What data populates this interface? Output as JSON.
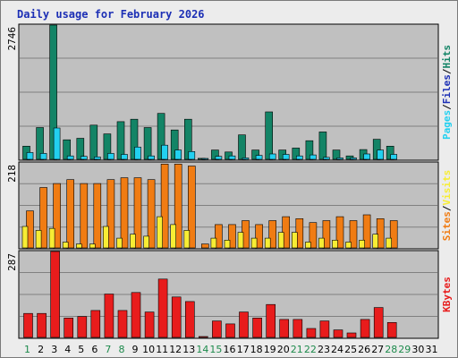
{
  "title": "Daily usage for February 2026",
  "colors": {
    "background": "#ececec",
    "plot_bg": "#c0c0c0",
    "title": "#1c2fb5",
    "hits": "#138466",
    "files": "#22d0f0",
    "sites": "#f07c13",
    "visits": "#f7ed34",
    "kbytes": "#e81c1c",
    "weekday_label": "#000000",
    "weekend_label": "#1d8a4c"
  },
  "legend": {
    "hits": "Hits",
    "files": "Files",
    "pages": "Pages",
    "sites": "Sites",
    "visits": "Visits",
    "kbytes": "KBytes",
    "sep": "/"
  },
  "chart_data": [
    {
      "type": "bar",
      "panel": "hits-files-pages",
      "title": "Daily usage for February 2026",
      "ymax_label": "2746",
      "ylim": [
        0,
        2746
      ],
      "grid": true,
      "categories": [
        "1",
        "2",
        "3",
        "4",
        "5",
        "6",
        "7",
        "8",
        "9",
        "10",
        "11",
        "12",
        "13",
        "14",
        "15",
        "16",
        "17",
        "18",
        "19",
        "20",
        "21",
        "22",
        "23",
        "24",
        "25",
        "26",
        "27",
        "28",
        "29",
        "30",
        "31"
      ],
      "weekend_days": [
        "1",
        "7",
        "8",
        "14",
        "15",
        "21",
        "22",
        "28",
        "29"
      ],
      "series": [
        {
          "name": "Hits",
          "values": [
            270,
            650,
            2746,
            400,
            430,
            700,
            520,
            770,
            820,
            650,
            940,
            600,
            820,
            20,
            190,
            150,
            500,
            190,
            970,
            190,
            230,
            380,
            560,
            190,
            70,
            200,
            410,
            270,
            0,
            0,
            0
          ]
        },
        {
          "name": "Files",
          "values": [
            140,
            120,
            640,
            70,
            60,
            50,
            120,
            100,
            250,
            70,
            290,
            190,
            160,
            5,
            60,
            70,
            30,
            80,
            110,
            100,
            70,
            90,
            40,
            30,
            30,
            110,
            190,
            100,
            0,
            0,
            0
          ]
        },
        {
          "name": "Pages",
          "values": [
            0,
            0,
            0,
            0,
            0,
            0,
            0,
            0,
            0,
            0,
            0,
            0,
            0,
            0,
            0,
            0,
            0,
            0,
            0,
            0,
            0,
            0,
            0,
            0,
            0,
            0,
            0,
            0,
            0,
            0,
            0
          ]
        }
      ]
    },
    {
      "type": "bar",
      "panel": "sites-visits",
      "ymax_label": "218",
      "ylim": [
        0,
        218
      ],
      "grid": true,
      "categories": [
        "1",
        "2",
        "3",
        "4",
        "5",
        "6",
        "7",
        "8",
        "9",
        "10",
        "11",
        "12",
        "13",
        "14",
        "15",
        "16",
        "17",
        "18",
        "19",
        "20",
        "21",
        "22",
        "23",
        "24",
        "25",
        "26",
        "27",
        "28",
        "29",
        "30",
        "31"
      ],
      "series": [
        {
          "name": "Sites",
          "values": [
            95,
            155,
            165,
            175,
            165,
            165,
            175,
            180,
            180,
            175,
            215,
            215,
            210,
            10,
            60,
            60,
            70,
            60,
            70,
            80,
            75,
            65,
            70,
            80,
            70,
            85,
            75,
            70,
            0,
            0,
            0
          ]
        },
        {
          "name": "Visits",
          "values": [
            55,
            45,
            50,
            15,
            10,
            10,
            55,
            25,
            35,
            30,
            80,
            60,
            45,
            0,
            25,
            20,
            40,
            25,
            25,
            40,
            40,
            15,
            25,
            20,
            15,
            20,
            35,
            25,
            0,
            0,
            0
          ]
        }
      ]
    },
    {
      "type": "bar",
      "panel": "kbytes",
      "ymax_label": "287",
      "ylim": [
        0,
        287
      ],
      "grid": true,
      "categories": [
        "1",
        "2",
        "3",
        "4",
        "5",
        "6",
        "7",
        "8",
        "9",
        "10",
        "11",
        "12",
        "13",
        "14",
        "15",
        "16",
        "17",
        "18",
        "19",
        "20",
        "21",
        "22",
        "23",
        "24",
        "25",
        "26",
        "27",
        "28",
        "29",
        "30",
        "31"
      ],
      "series": [
        {
          "name": "KBytes",
          "values": [
            80,
            80,
            287,
            65,
            70,
            90,
            145,
            90,
            150,
            85,
            195,
            135,
            120,
            2,
            55,
            45,
            85,
            65,
            110,
            60,
            60,
            30,
            55,
            25,
            15,
            60,
            100,
            50,
            0,
            0,
            0
          ]
        }
      ]
    }
  ]
}
